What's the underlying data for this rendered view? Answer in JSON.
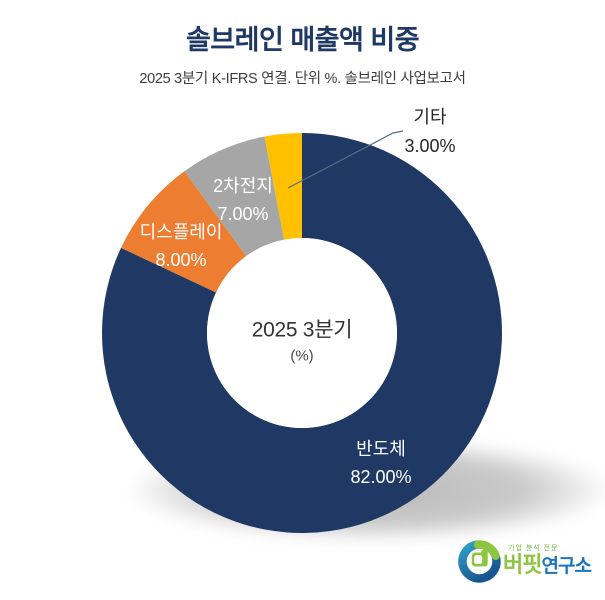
{
  "header": {
    "title": "솔브레인 매출액 비중",
    "subtitle": "2025 3분기 K-IFRS 연결. 단위 %. 솔브레인 사업보고서"
  },
  "chart_data": {
    "type": "pie",
    "variant": "donut",
    "categories": [
      "반도체",
      "디스플레이",
      "2차전지",
      "기타"
    ],
    "values": [
      82,
      8,
      7,
      3
    ],
    "value_labels": [
      "82.00%",
      "8.00%",
      "7.00%",
      "3.00%"
    ],
    "colors": [
      "#1F3864",
      "#ED7D31",
      "#A6A6A6",
      "#FFC000"
    ],
    "center_title": "2025 3분기",
    "center_subtitle": "(%)",
    "start_angle_deg": 0,
    "direction": "clockwise",
    "inner_radius_ratio": 0.475,
    "leader_line_color": "#5A6B85",
    "legend": "none"
  },
  "logo": {
    "tagline": "기업 분석 전문",
    "name_primary": "버핏",
    "name_secondary": "연구소",
    "green": "#8CC63F",
    "blue": "#1B75BC"
  }
}
